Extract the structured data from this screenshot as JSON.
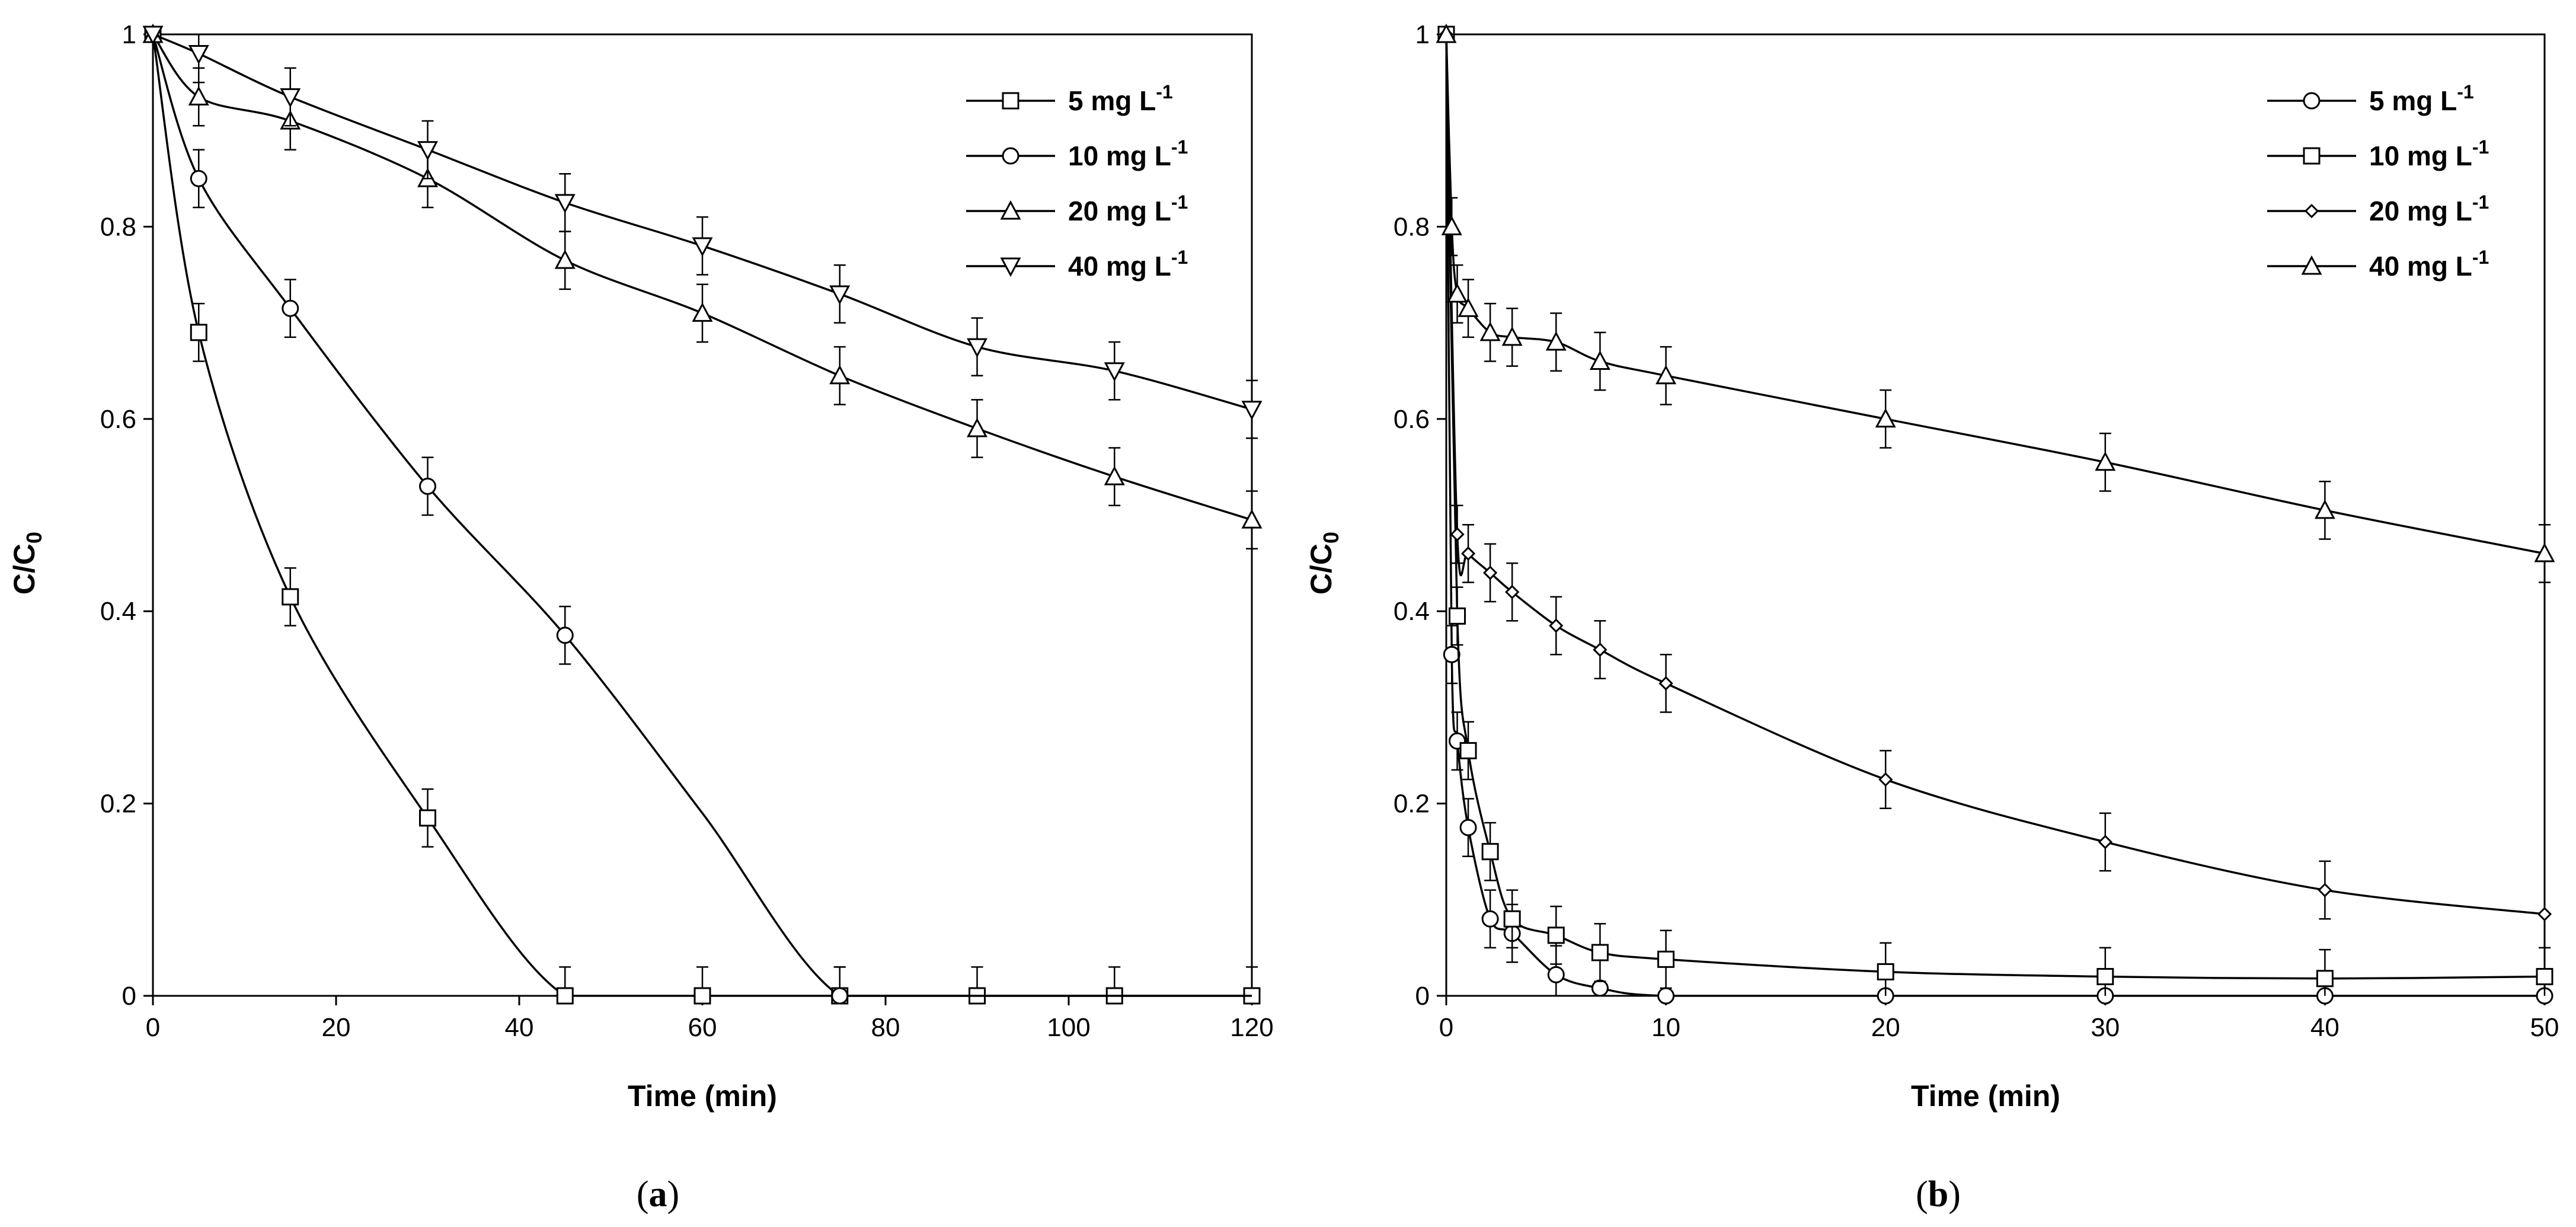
{
  "chart_data": [
    {
      "type": "line",
      "panel_label": "a",
      "xlabel": "Time (min)",
      "ylabel_main": "C/C",
      "ylabel_sub": "0",
      "xlim": [
        0,
        120
      ],
      "ylim": [
        0,
        1
      ],
      "x_ticks": [
        "0",
        "20",
        "40",
        "60",
        "80",
        "100",
        "120"
      ],
      "y_ticks": [
        "0",
        "0.2",
        "0.4",
        "0.6",
        "0.8",
        "1"
      ],
      "legend_position": "top-right",
      "grid": false,
      "series": [
        {
          "name": "5 mg L",
          "superscript": "-1",
          "marker": "square",
          "points": [
            [
              0,
              1.0
            ],
            [
              5,
              0.69
            ],
            [
              15,
              0.415
            ],
            [
              30,
              0.185
            ],
            [
              45,
              0.0
            ],
            [
              60,
              0.0
            ],
            [
              75,
              0.0
            ],
            [
              90,
              0.0
            ],
            [
              105,
              0.0
            ],
            [
              120,
              0.0
            ]
          ],
          "err": [
            0,
            0.03,
            0.03,
            0.03,
            0.03,
            0.03,
            0.03,
            0.03,
            0.03,
            0.03
          ]
        },
        {
          "name": "10 mg L",
          "superscript": "-1",
          "marker": "circle",
          "points": [
            [
              0,
              1.0
            ],
            [
              5,
              0.85
            ],
            [
              15,
              0.715
            ],
            [
              30,
              0.53
            ],
            [
              45,
              0.375
            ],
            [
              60,
              0.19
            ],
            [
              75,
              0.0
            ],
            [
              90,
              0.0
            ],
            [
              105,
              0.0
            ],
            [
              120,
              0.0
            ]
          ],
          "markers_at": [
            0,
            5,
            15,
            30,
            45,
            75
          ],
          "err": [
            0,
            0.03,
            0.03,
            0.03,
            0.03,
            0,
            0.03,
            0,
            0,
            0
          ]
        },
        {
          "name": "20 mg L",
          "superscript": "-1",
          "marker": "triangle-up",
          "points": [
            [
              0,
              1.0
            ],
            [
              5,
              0.935
            ],
            [
              15,
              0.91
            ],
            [
              30,
              0.85
            ],
            [
              45,
              0.765
            ],
            [
              60,
              0.71
            ],
            [
              75,
              0.645
            ],
            [
              90,
              0.59
            ],
            [
              105,
              0.54
            ],
            [
              120,
              0.495
            ]
          ],
          "err": [
            0,
            0.03,
            0.03,
            0.03,
            0.03,
            0.03,
            0.03,
            0.03,
            0.03,
            0.03
          ]
        },
        {
          "name": "40 mg L",
          "superscript": "-1",
          "marker": "triangle-down",
          "points": [
            [
              0,
              1.0
            ],
            [
              5,
              0.98
            ],
            [
              15,
              0.935
            ],
            [
              30,
              0.88
            ],
            [
              45,
              0.825
            ],
            [
              60,
              0.78
            ],
            [
              75,
              0.73
            ],
            [
              90,
              0.675
            ],
            [
              105,
              0.65
            ],
            [
              120,
              0.61
            ]
          ],
          "err": [
            0,
            0.03,
            0.03,
            0.03,
            0.03,
            0.03,
            0.03,
            0.03,
            0.03,
            0.03
          ]
        }
      ]
    },
    {
      "type": "line",
      "panel_label": "b",
      "xlabel": "Time (min)",
      "ylabel_main": "C/C",
      "ylabel_sub": "0",
      "xlim": [
        0,
        50
      ],
      "ylim": [
        0,
        1
      ],
      "x_ticks": [
        "0",
        "10",
        "20",
        "30",
        "40",
        "50"
      ],
      "y_ticks": [
        "0",
        "0.2",
        "0.4",
        "0.6",
        "0.8",
        "1"
      ],
      "legend_position": "top-right",
      "grid": false,
      "series": [
        {
          "name": "5 mg L",
          "superscript": "-1",
          "marker": "circle",
          "points": [
            [
              0,
              1.0
            ],
            [
              0.25,
              0.355
            ],
            [
              0.5,
              0.265
            ],
            [
              1,
              0.175
            ],
            [
              2,
              0.08
            ],
            [
              3,
              0.065
            ],
            [
              5,
              0.022
            ],
            [
              7,
              0.008
            ],
            [
              10,
              0.0
            ],
            [
              20,
              0.0
            ],
            [
              30,
              0.0
            ],
            [
              40,
              0.0
            ],
            [
              50,
              0.0
            ]
          ],
          "err": [
            0,
            0.03,
            0.03,
            0.03,
            0.03,
            0.03,
            0.03,
            0,
            0,
            0,
            0,
            0,
            0
          ]
        },
        {
          "name": "10 mg L",
          "superscript": "-1",
          "marker": "square",
          "points": [
            [
              0,
              1.0
            ],
            [
              0.5,
              0.395
            ],
            [
              1,
              0.255
            ],
            [
              2,
              0.15
            ],
            [
              3,
              0.08
            ],
            [
              5,
              0.063
            ],
            [
              7,
              0.045
            ],
            [
              10,
              0.038
            ],
            [
              20,
              0.025
            ],
            [
              30,
              0.02
            ],
            [
              40,
              0.018
            ],
            [
              50,
              0.02
            ]
          ],
          "err": [
            0,
            0.03,
            0.03,
            0.03,
            0.03,
            0.03,
            0.03,
            0.03,
            0.03,
            0.03,
            0.03,
            0.03
          ]
        },
        {
          "name": "20 mg L",
          "superscript": "-1",
          "marker": "diamond",
          "points": [
            [
              0,
              1.0
            ],
            [
              0.5,
              0.48
            ],
            [
              1,
              0.46
            ],
            [
              2,
              0.44
            ],
            [
              3,
              0.42
            ],
            [
              5,
              0.385
            ],
            [
              7,
              0.36
            ],
            [
              10,
              0.325
            ],
            [
              20,
              0.225
            ],
            [
              30,
              0.16
            ],
            [
              40,
              0.11
            ],
            [
              50,
              0.085
            ]
          ],
          "err": [
            0,
            0.03,
            0.03,
            0.03,
            0.03,
            0.03,
            0.03,
            0.03,
            0.03,
            0.03,
            0.03,
            0
          ]
        },
        {
          "name": "40 mg L",
          "superscript": "-1",
          "marker": "triangle-up",
          "points": [
            [
              0,
              1.0
            ],
            [
              0.25,
              0.8
            ],
            [
              0.5,
              0.73
            ],
            [
              1,
              0.715
            ],
            [
              2,
              0.69
            ],
            [
              3,
              0.685
            ],
            [
              5,
              0.68
            ],
            [
              7,
              0.66
            ],
            [
              10,
              0.645
            ],
            [
              20,
              0.6
            ],
            [
              30,
              0.555
            ],
            [
              40,
              0.505
            ],
            [
              50,
              0.46
            ]
          ],
          "err": [
            0,
            0.03,
            0.03,
            0.03,
            0.03,
            0.03,
            0.03,
            0.03,
            0.03,
            0.03,
            0.03,
            0.03,
            0.03
          ]
        }
      ]
    }
  ]
}
